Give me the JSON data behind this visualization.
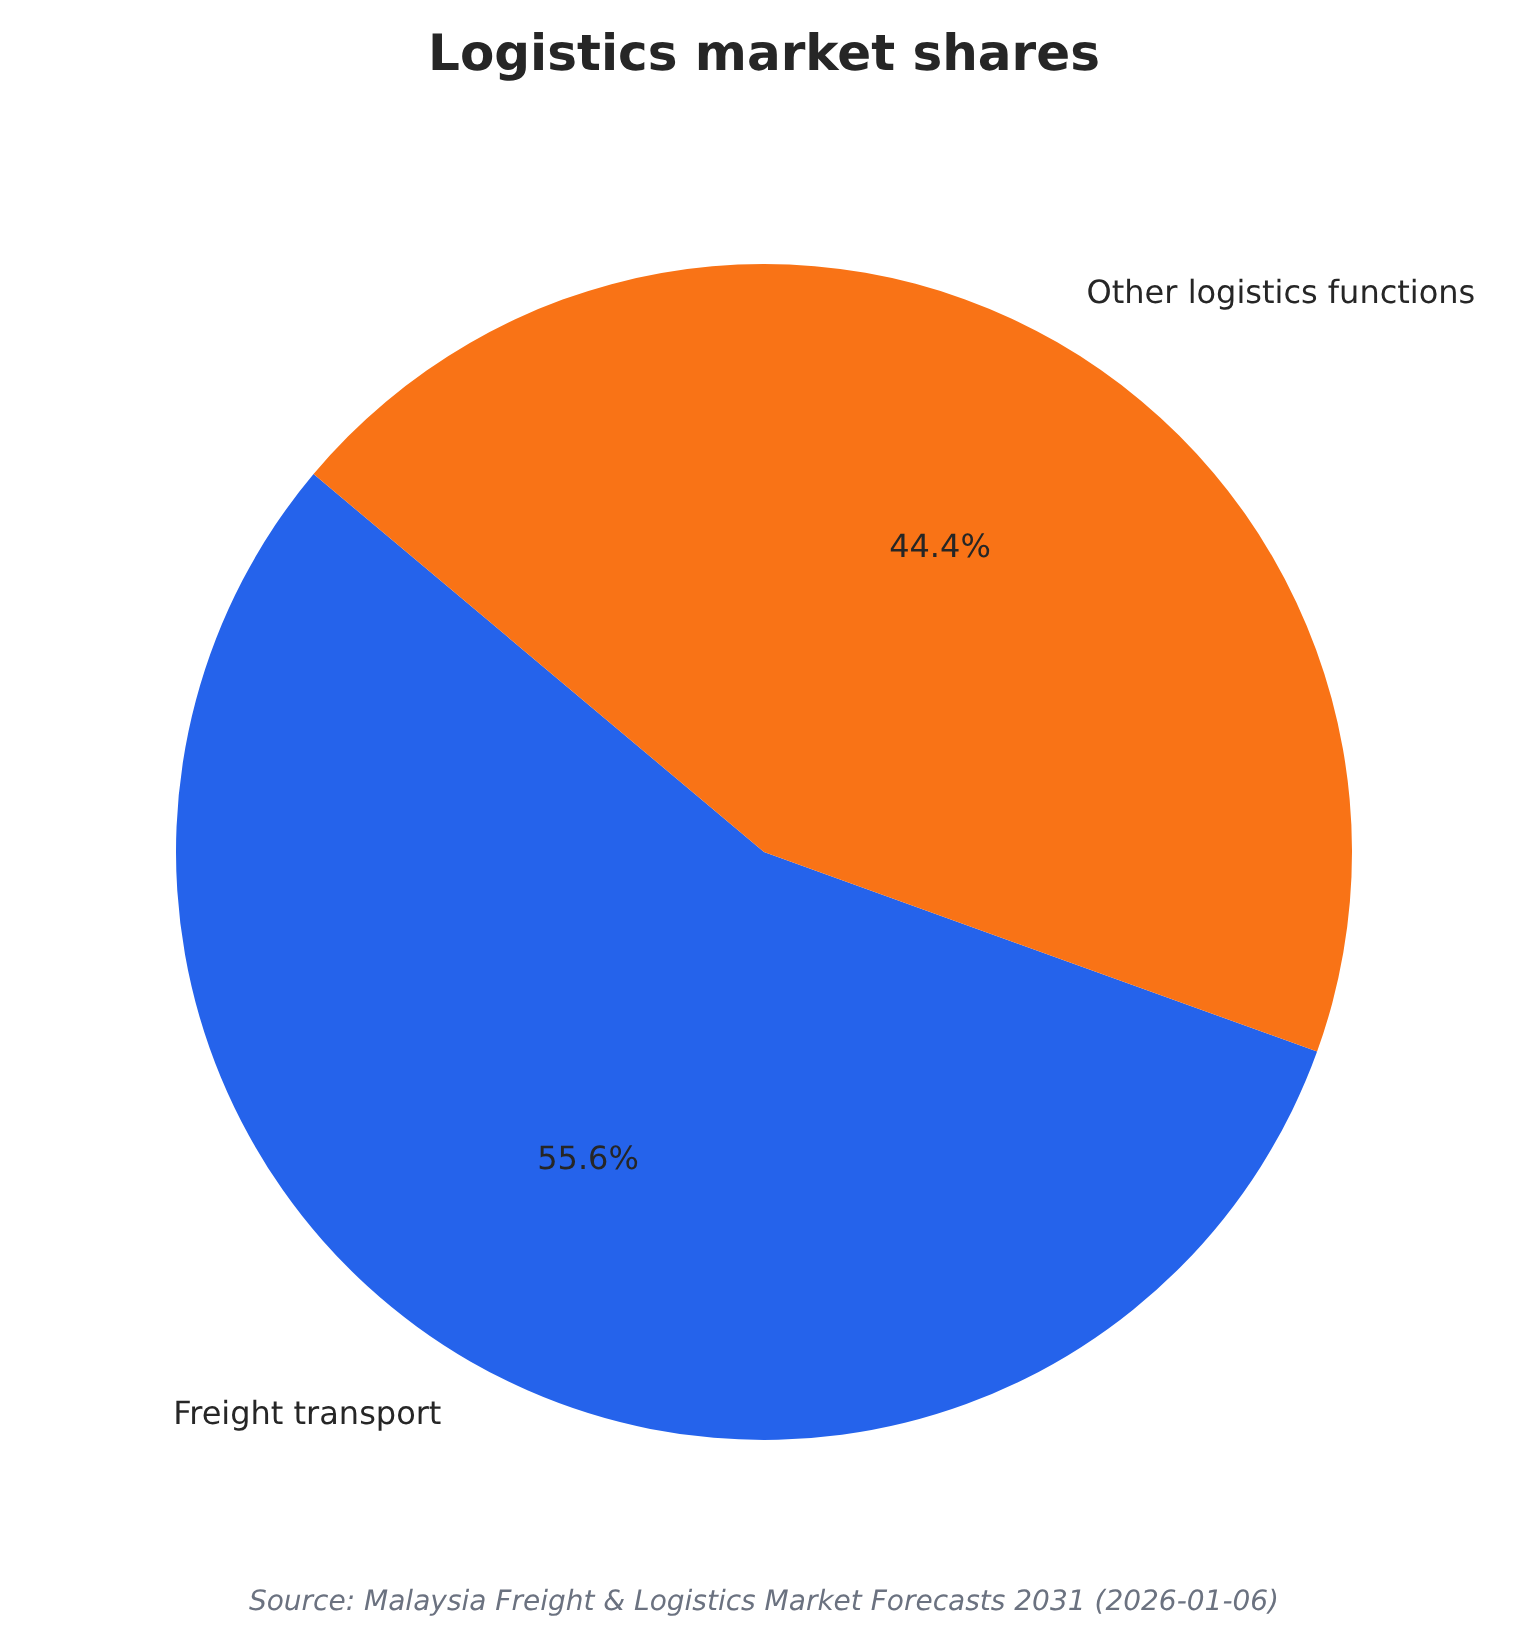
{
  "chart_data": {
    "type": "pie",
    "title": "Logistics market shares",
    "categories": [
      "Freight transport",
      "Other logistics functions"
    ],
    "values": [
      55.6,
      44.4
    ],
    "colors": [
      "#2563eb",
      "#f97316"
    ],
    "value_labels": [
      "55.6%",
      "44.4%"
    ],
    "annotations": [
      "Source: Malaysia Freight & Logistics Market Forecasts 2031 (2026-01-06)"
    ]
  }
}
